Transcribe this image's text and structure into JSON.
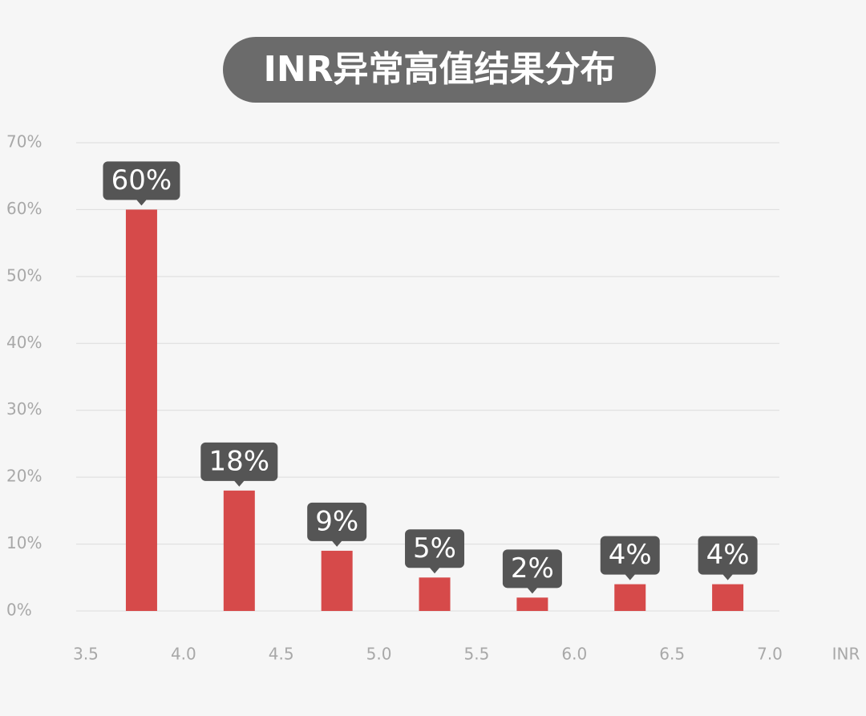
{
  "chart_data": {
    "type": "histogram",
    "title": "INR异常高值结果分布",
    "x_label": "INR",
    "bins": [
      3.5,
      4,
      4.5,
      5,
      5.5,
      6,
      6.5,
      7
    ],
    "values": [
      60,
      18,
      9,
      5,
      2,
      4,
      4
    ],
    "value_labels": [
      "60%",
      "18%",
      "9%",
      "5%",
      "2%",
      "4%",
      "4%"
    ],
    "color": "#d64a4a",
    "xlim": [
      3.5,
      7
    ],
    "xticks": [
      3.5,
      {
        "value": 4,
        "label": "4.0"
      },
      4.5,
      {
        "value": 5,
        "label": "5.0"
      },
      5.5,
      {
        "value": 6,
        "label": "6.0"
      },
      6.5,
      {
        "value": 7,
        "label": "7.0"
      }
    ],
    "ylim": [
      0,
      70
    ],
    "yticks": [
      {
        "value": 0,
        "label": "0%"
      },
      {
        "value": 10,
        "label": "10%"
      },
      {
        "value": 20,
        "label": "20%"
      },
      {
        "value": 30,
        "label": "30%"
      },
      {
        "value": 40,
        "label": "40%"
      },
      {
        "value": 50,
        "label": "50%"
      },
      {
        "value": 60,
        "label": "60%"
      },
      {
        "value": 70,
        "label": "70%"
      }
    ],
    "grid": true
  }
}
